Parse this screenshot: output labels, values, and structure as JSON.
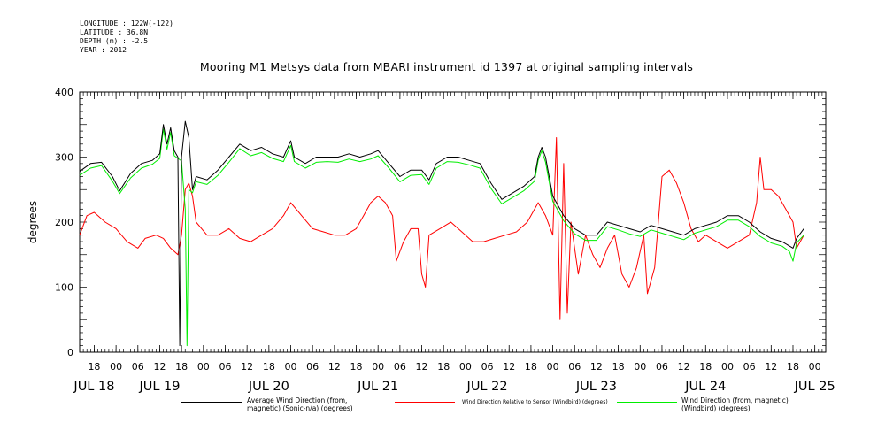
{
  "meta": {
    "longitude": "LONGITUDE : 122W(-122)",
    "latitude": "LATITUDE : 36.8N",
    "depth": "DEPTH (m) : -2.5",
    "year": "YEAR : 2012"
  },
  "chart_data": {
    "type": "line",
    "title": "Mooring M1 Metsys data from MBARI instrument id 1397 at original sampling intervals",
    "ylabel": "degrees",
    "xlabel": "",
    "ylim": [
      0,
      400
    ],
    "yticks": [
      0,
      100,
      200,
      300,
      400
    ],
    "xlim_hours": [
      414,
      619
    ],
    "hour_ticks": [
      {
        "h": 418,
        "label": "18"
      },
      {
        "h": 424,
        "label": "00"
      },
      {
        "h": 430,
        "label": "06"
      },
      {
        "h": 436,
        "label": "12"
      },
      {
        "h": 442,
        "label": "18"
      },
      {
        "h": 448,
        "label": "00"
      },
      {
        "h": 454,
        "label": "06"
      },
      {
        "h": 460,
        "label": "12"
      },
      {
        "h": 466,
        "label": "18"
      },
      {
        "h": 472,
        "label": "00"
      },
      {
        "h": 478,
        "label": "06"
      },
      {
        "h": 484,
        "label": "12"
      },
      {
        "h": 490,
        "label": "18"
      },
      {
        "h": 496,
        "label": "00"
      },
      {
        "h": 502,
        "label": "06"
      },
      {
        "h": 508,
        "label": "12"
      },
      {
        "h": 514,
        "label": "18"
      },
      {
        "h": 520,
        "label": "00"
      },
      {
        "h": 526,
        "label": "06"
      },
      {
        "h": 532,
        "label": "12"
      },
      {
        "h": 538,
        "label": "18"
      },
      {
        "h": 544,
        "label": "00"
      },
      {
        "h": 550,
        "label": "06"
      },
      {
        "h": 556,
        "label": "12"
      },
      {
        "h": 562,
        "label": "18"
      },
      {
        "h": 568,
        "label": "00"
      },
      {
        "h": 574,
        "label": "06"
      },
      {
        "h": 580,
        "label": "12"
      },
      {
        "h": 586,
        "label": "18"
      },
      {
        "h": 592,
        "label": "00"
      },
      {
        "h": 598,
        "label": "06"
      },
      {
        "h": 604,
        "label": "12"
      },
      {
        "h": 610,
        "label": "18"
      },
      {
        "h": 616,
        "label": "00"
      }
    ],
    "day_labels": [
      {
        "h": 418,
        "label": "JUL 18"
      },
      {
        "h": 436,
        "label": "JUL 19"
      },
      {
        "h": 466,
        "label": "JUL 20"
      },
      {
        "h": 496,
        "label": "JUL 21"
      },
      {
        "h": 526,
        "label": "JUL 22"
      },
      {
        "h": 556,
        "label": "JUL 23"
      },
      {
        "h": 586,
        "label": "JUL 24"
      },
      {
        "h": 616,
        "label": "JUL 25"
      }
    ],
    "legend": "bottom",
    "series": [
      {
        "name": "Average Wind Direction (from, magnetic) (Sonic-n/a) (degrees)",
        "color": "#000000",
        "points": [
          [
            414,
            278
          ],
          [
            417,
            290
          ],
          [
            420,
            292
          ],
          [
            423,
            270
          ],
          [
            425,
            248
          ],
          [
            428,
            275
          ],
          [
            431,
            290
          ],
          [
            434,
            295
          ],
          [
            436,
            305
          ],
          [
            437,
            350
          ],
          [
            438,
            320
          ],
          [
            439,
            345
          ],
          [
            440,
            310
          ],
          [
            441,
            300
          ],
          [
            441.5,
            10
          ],
          [
            442,
            300
          ],
          [
            443,
            355
          ],
          [
            444,
            330
          ],
          [
            445,
            250
          ],
          [
            446,
            270
          ],
          [
            449,
            265
          ],
          [
            452,
            280
          ],
          [
            455,
            300
          ],
          [
            458,
            320
          ],
          [
            461,
            310
          ],
          [
            464,
            315
          ],
          [
            467,
            305
          ],
          [
            470,
            300
          ],
          [
            472,
            325
          ],
          [
            473,
            300
          ],
          [
            476,
            290
          ],
          [
            479,
            300
          ],
          [
            482,
            300
          ],
          [
            485,
            300
          ],
          [
            488,
            305
          ],
          [
            491,
            300
          ],
          [
            494,
            305
          ],
          [
            496,
            310
          ],
          [
            499,
            290
          ],
          [
            502,
            270
          ],
          [
            505,
            280
          ],
          [
            508,
            280
          ],
          [
            510,
            265
          ],
          [
            512,
            290
          ],
          [
            515,
            300
          ],
          [
            518,
            300
          ],
          [
            521,
            295
          ],
          [
            524,
            290
          ],
          [
            527,
            260
          ],
          [
            530,
            235
          ],
          [
            533,
            245
          ],
          [
            536,
            255
          ],
          [
            539,
            270
          ],
          [
            540,
            300
          ],
          [
            541,
            315
          ],
          [
            542,
            300
          ],
          [
            543,
            270
          ],
          [
            544,
            240
          ],
          [
            547,
            210
          ],
          [
            550,
            190
          ],
          [
            553,
            180
          ],
          [
            556,
            180
          ],
          [
            559,
            200
          ],
          [
            562,
            195
          ],
          [
            565,
            190
          ],
          [
            568,
            185
          ],
          [
            571,
            195
          ],
          [
            574,
            190
          ],
          [
            577,
            185
          ],
          [
            580,
            180
          ],
          [
            583,
            190
          ],
          [
            586,
            195
          ],
          [
            589,
            200
          ],
          [
            592,
            210
          ],
          [
            595,
            210
          ],
          [
            598,
            200
          ],
          [
            601,
            185
          ],
          [
            604,
            175
          ],
          [
            607,
            170
          ],
          [
            610,
            160
          ],
          [
            611,
            175
          ],
          [
            613,
            190
          ]
        ]
      },
      {
        "name": "Wind Direction Relative to Sensor (Windbird) (degrees)",
        "color": "#ff0000",
        "points": [
          [
            414,
            180
          ],
          [
            416,
            210
          ],
          [
            418,
            215
          ],
          [
            421,
            200
          ],
          [
            424,
            190
          ],
          [
            427,
            170
          ],
          [
            430,
            160
          ],
          [
            432,
            175
          ],
          [
            435,
            180
          ],
          [
            437,
            175
          ],
          [
            439,
            160
          ],
          [
            441,
            150
          ],
          [
            442,
            180
          ],
          [
            443,
            250
          ],
          [
            444,
            260
          ],
          [
            445,
            240
          ],
          [
            446,
            200
          ],
          [
            449,
            180
          ],
          [
            452,
            180
          ],
          [
            455,
            190
          ],
          [
            458,
            175
          ],
          [
            461,
            170
          ],
          [
            464,
            180
          ],
          [
            467,
            190
          ],
          [
            470,
            210
          ],
          [
            472,
            230
          ],
          [
            475,
            210
          ],
          [
            478,
            190
          ],
          [
            481,
            185
          ],
          [
            484,
            180
          ],
          [
            487,
            180
          ],
          [
            490,
            190
          ],
          [
            492,
            210
          ],
          [
            494,
            230
          ],
          [
            496,
            240
          ],
          [
            498,
            230
          ],
          [
            500,
            210
          ],
          [
            501,
            140
          ],
          [
            503,
            170
          ],
          [
            505,
            190
          ],
          [
            507,
            190
          ],
          [
            508,
            120
          ],
          [
            509,
            100
          ],
          [
            510,
            180
          ],
          [
            513,
            190
          ],
          [
            516,
            200
          ],
          [
            519,
            185
          ],
          [
            522,
            170
          ],
          [
            525,
            170
          ],
          [
            528,
            175
          ],
          [
            531,
            180
          ],
          [
            534,
            185
          ],
          [
            537,
            200
          ],
          [
            540,
            230
          ],
          [
            542,
            210
          ],
          [
            544,
            180
          ],
          [
            545,
            330
          ],
          [
            546,
            50
          ],
          [
            547,
            290
          ],
          [
            548,
            60
          ],
          [
            549,
            200
          ],
          [
            551,
            120
          ],
          [
            553,
            180
          ],
          [
            555,
            150
          ],
          [
            557,
            130
          ],
          [
            559,
            160
          ],
          [
            561,
            180
          ],
          [
            563,
            120
          ],
          [
            565,
            100
          ],
          [
            567,
            130
          ],
          [
            569,
            180
          ],
          [
            570,
            90
          ],
          [
            572,
            130
          ],
          [
            574,
            270
          ],
          [
            576,
            280
          ],
          [
            578,
            260
          ],
          [
            580,
            230
          ],
          [
            582,
            190
          ],
          [
            584,
            170
          ],
          [
            586,
            180
          ],
          [
            589,
            170
          ],
          [
            592,
            160
          ],
          [
            595,
            170
          ],
          [
            598,
            180
          ],
          [
            600,
            230
          ],
          [
            601,
            300
          ],
          [
            602,
            250
          ],
          [
            604,
            250
          ],
          [
            606,
            240
          ],
          [
            608,
            220
          ],
          [
            610,
            200
          ],
          [
            611,
            160
          ],
          [
            613,
            180
          ]
        ]
      },
      {
        "name": "Wind Direction (from, magnetic) (Windbird) (degrees)",
        "color": "#00ee00",
        "points": [
          [
            414,
            272
          ],
          [
            417,
            283
          ],
          [
            420,
            287
          ],
          [
            423,
            263
          ],
          [
            425,
            244
          ],
          [
            428,
            268
          ],
          [
            431,
            283
          ],
          [
            434,
            289
          ],
          [
            436,
            298
          ],
          [
            437,
            343
          ],
          [
            438,
            312
          ],
          [
            439,
            338
          ],
          [
            440,
            302
          ],
          [
            442,
            294
          ],
          [
            443,
            220
          ],
          [
            443.5,
            10
          ],
          [
            444,
            250
          ],
          [
            445,
            245
          ],
          [
            446,
            262
          ],
          [
            449,
            258
          ],
          [
            452,
            272
          ],
          [
            455,
            292
          ],
          [
            458,
            313
          ],
          [
            461,
            302
          ],
          [
            464,
            307
          ],
          [
            467,
            298
          ],
          [
            470,
            293
          ],
          [
            472,
            318
          ],
          [
            473,
            293
          ],
          [
            476,
            283
          ],
          [
            479,
            292
          ],
          [
            482,
            293
          ],
          [
            485,
            292
          ],
          [
            488,
            297
          ],
          [
            491,
            293
          ],
          [
            494,
            297
          ],
          [
            496,
            302
          ],
          [
            499,
            283
          ],
          [
            502,
            262
          ],
          [
            505,
            272
          ],
          [
            508,
            273
          ],
          [
            510,
            258
          ],
          [
            512,
            283
          ],
          [
            515,
            293
          ],
          [
            518,
            292
          ],
          [
            521,
            288
          ],
          [
            524,
            283
          ],
          [
            527,
            252
          ],
          [
            530,
            228
          ],
          [
            533,
            238
          ],
          [
            536,
            248
          ],
          [
            539,
            263
          ],
          [
            540,
            295
          ],
          [
            541,
            310
          ],
          [
            542,
            292
          ],
          [
            543,
            262
          ],
          [
            544,
            232
          ],
          [
            547,
            202
          ],
          [
            550,
            182
          ],
          [
            553,
            172
          ],
          [
            556,
            172
          ],
          [
            559,
            193
          ],
          [
            562,
            188
          ],
          [
            565,
            182
          ],
          [
            568,
            178
          ],
          [
            571,
            188
          ],
          [
            574,
            183
          ],
          [
            577,
            178
          ],
          [
            580,
            173
          ],
          [
            583,
            183
          ],
          [
            586,
            188
          ],
          [
            589,
            193
          ],
          [
            592,
            203
          ],
          [
            595,
            203
          ],
          [
            598,
            193
          ],
          [
            601,
            178
          ],
          [
            604,
            168
          ],
          [
            607,
            163
          ],
          [
            609,
            155
          ],
          [
            610,
            140
          ],
          [
            611,
            168
          ],
          [
            613,
            180
          ]
        ]
      }
    ]
  }
}
